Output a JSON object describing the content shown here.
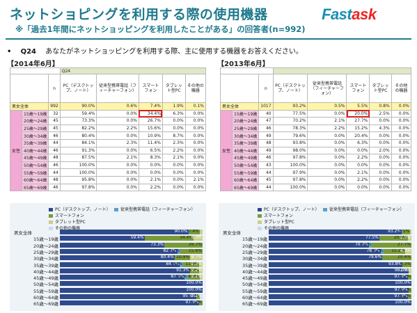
{
  "header": {
    "title": "ネットショピングを利用する際の使用機器",
    "subtitle": "※「過去1年間にネットショッピングを利用したことがある」の回答者(n=992)",
    "logo_main": "Fast",
    "logo_accent": "ask"
  },
  "question": {
    "bullet": "•",
    "num": "Q24",
    "text": "あなたがネットショッピングを利用する際、主に使用する機器をお答えください。"
  },
  "colors": {
    "pc": "#2e4a8c",
    "mobile": "#5aa0c8",
    "smart": "#7a9a3a",
    "tablet": "#c8cf8a",
    "other": "#cfd8ea",
    "teal": "#1f7a8c",
    "pink": "#f2a9d3",
    "total": "#fff5a8"
  },
  "panel2014": {
    "year": "【2014年6月】",
    "qcode": "Q24",
    "headers": [
      "n",
      "PC（デスクトップ、ノート）",
      "従来型携帯電話（フィーチャーフォン）",
      "スマートフォン",
      "タブレット型PC",
      "その他の機器"
    ],
    "total": {
      "label": "男女全体",
      "n": "992",
      "vals": [
        "90.0%",
        "0.6%",
        "7.4%",
        "1.9%",
        "0.1%"
      ]
    },
    "sex": "女性",
    "rows": [
      {
        "age": "15歳～19歳",
        "n": "32",
        "vals": [
          "59.4%",
          "0.0%",
          "34.4%",
          "6.3%",
          "0.0%"
        ]
      },
      {
        "age": "20歳～24歳",
        "n": "45",
        "vals": [
          "73.3%",
          "0.0%",
          "26.7%",
          "0.0%",
          "0.0%"
        ]
      },
      {
        "age": "25歳～29歳",
        "n": "45",
        "vals": [
          "82.2%",
          "2.2%",
          "15.6%",
          "0.0%",
          "0.0%"
        ]
      },
      {
        "age": "30歳～34歳",
        "n": "46",
        "vals": [
          "80.4%",
          "0.0%",
          "10.9%",
          "8.7%",
          "0.0%"
        ]
      },
      {
        "age": "35歳～39歳",
        "n": "44",
        "vals": [
          "84.1%",
          "2.3%",
          "11.4%",
          "2.3%",
          "0.0%"
        ]
      },
      {
        "age": "40歳～44歳",
        "n": "46",
        "vals": [
          "91.3%",
          "0.0%",
          "6.5%",
          "2.2%",
          "0.0%"
        ]
      },
      {
        "age": "45歳～49歳",
        "n": "48",
        "vals": [
          "87.5%",
          "2.1%",
          "8.3%",
          "2.1%",
          "0.0%"
        ]
      },
      {
        "age": "50歳～54歳",
        "n": "46",
        "vals": [
          "100.0%",
          "0.0%",
          "0.0%",
          "0.0%",
          "0.0%"
        ]
      },
      {
        "age": "55歳～59歳",
        "n": "44",
        "vals": [
          "100.0%",
          "0.0%",
          "0.0%",
          "0.0%",
          "0.0%"
        ]
      },
      {
        "age": "60歳～64歳",
        "n": "48",
        "vals": [
          "95.8%",
          "0.0%",
          "2.1%",
          "0.0%",
          "2.1%"
        ]
      },
      {
        "age": "65歳～69歳",
        "n": "46",
        "vals": [
          "97.8%",
          "0.0%",
          "2.2%",
          "0.0%",
          "0.0%"
        ]
      }
    ]
  },
  "panel2013": {
    "year": "【2013年6月】",
    "headers": [
      "n",
      "PC（デスクトップ、ノート）",
      "従来型携帯電話（フィーチャーフォン）",
      "スマートフォン",
      "タブレット型PC",
      "その他の機器"
    ],
    "total": {
      "label": "男女全体",
      "n": "1017",
      "vals": [
        "93.2%",
        "0.5%",
        "5.5%",
        "0.8%",
        "0.0%"
      ]
    },
    "sex": "女性",
    "rows": [
      {
        "age": "15歳～19歳",
        "n": "40",
        "vals": [
          "77.5%",
          "0.0%",
          "20.0%",
          "2.5%",
          "0.0%"
        ]
      },
      {
        "age": "20歳～24歳",
        "n": "47",
        "vals": [
          "70.2%",
          "2.1%",
          "27.7%",
          "0.0%",
          "0.0%"
        ]
      },
      {
        "age": "25歳～29歳",
        "n": "46",
        "vals": [
          "78.3%",
          "2.2%",
          "15.2%",
          "4.3%",
          "0.0%"
        ]
      },
      {
        "age": "30歳～34歳",
        "n": "49",
        "vals": [
          "79.6%",
          "0.0%",
          "20.4%",
          "0.0%",
          "0.0%"
        ]
      },
      {
        "age": "35歳～39歳",
        "n": "48",
        "vals": [
          "93.8%",
          "0.0%",
          "6.3%",
          "0.0%",
          "0.0%"
        ]
      },
      {
        "age": "40歳～44歳",
        "n": "49",
        "vals": [
          "98.0%",
          "0.0%",
          "0.0%",
          "2.0%",
          "0.0%"
        ]
      },
      {
        "age": "45歳～49歳",
        "n": "46",
        "vals": [
          "97.8%",
          "0.0%",
          "2.2%",
          "0.0%",
          "0.0%"
        ]
      },
      {
        "age": "50歳～54歳",
        "n": "43",
        "vals": [
          "100.0%",
          "0.0%",
          "0.0%",
          "0.0%",
          "0.0%"
        ]
      },
      {
        "age": "55歳～59歳",
        "n": "44",
        "vals": [
          "97.9%",
          "0.0%",
          "2.1%",
          "0.0%",
          "0.0%"
        ]
      },
      {
        "age": "60歳～64歳",
        "n": "45",
        "vals": [
          "97.8%",
          "0.0%",
          "2.2%",
          "0.0%",
          "0.0%"
        ]
      },
      {
        "age": "65歳～69歳",
        "n": "44",
        "vals": [
          "100.0%",
          "0.0%",
          "0.0%",
          "0.0%",
          "0.0%"
        ]
      }
    ]
  },
  "chart_data": [
    {
      "type": "bar",
      "stacked": true,
      "orientation": "horizontal",
      "legend": [
        "PC（デスクトップ、ノート）",
        "従来型携帯電話（フィーチャーフォン）",
        "スマートフォン",
        "タブレット型PC",
        "その他の機器"
      ],
      "legend_position": "top",
      "categories": [
        "男女全体",
        "15歳～19歳",
        "20歳～24歳",
        "25歳～29歳",
        "30歳～34歳",
        "35歳～39歳",
        "40歳～44歳",
        "45歳～49歳",
        "50歳～54歳",
        "55歳～59歳",
        "60歳～64歳",
        "65歳～69歳"
      ],
      "series": [
        {
          "name": "PC（デスクトップ、ノート）",
          "values": [
            90.0,
            59.4,
            73.3,
            82.2,
            80.4,
            84.1,
            91.3,
            87.5,
            100.0,
            100.0,
            95.8,
            97.8
          ]
        },
        {
          "name": "従来型携帯電話（フィーチャーフォン）",
          "values": [
            0.6,
            0.0,
            0.0,
            2.2,
            0.0,
            2.3,
            0.0,
            2.1,
            0.0,
            0.0,
            0.0,
            0.0
          ]
        },
        {
          "name": "スマートフォン",
          "values": [
            7.4,
            34.4,
            26.7,
            15.6,
            10.9,
            11.4,
            6.5,
            8.3,
            0.0,
            0.0,
            2.1,
            2.2
          ]
        },
        {
          "name": "タブレット型PC",
          "values": [
            1.9,
            6.3,
            0.0,
            0.0,
            8.7,
            2.3,
            2.2,
            2.1,
            0.0,
            0.0,
            0.0,
            0.0
          ]
        },
        {
          "name": "その他の機器",
          "values": [
            0.1,
            0.0,
            0.0,
            0.0,
            0.0,
            0.0,
            0.0,
            0.0,
            0.0,
            0.0,
            2.1,
            0.0
          ]
        }
      ],
      "xlim": [
        0,
        100
      ]
    },
    {
      "type": "bar",
      "stacked": true,
      "orientation": "horizontal",
      "legend": [
        "PC（デスクトップ、ノート）",
        "従来型携帯電話（フィーチャーフォン）",
        "スマートフォン",
        "タブレット型PC",
        "その他の機器"
      ],
      "legend_position": "top",
      "categories": [
        "男女全体",
        "15歳～19歳",
        "20歳～24歳",
        "25歳～29歳",
        "30歳～34歳",
        "35歳～39歳",
        "40歳～44歳",
        "45歳～49歳",
        "50歳～54歳",
        "55歳～59歳",
        "60歳～64歳",
        "65歳～69歳"
      ],
      "series": [
        {
          "name": "PC（デスクトップ、ノート）",
          "values": [
            93.2,
            77.5,
            70.2,
            78.3,
            79.6,
            93.8,
            98.0,
            97.8,
            100.0,
            97.9,
            97.8,
            100.0
          ]
        },
        {
          "name": "従来型携帯電話（フィーチャーフォン）",
          "values": [
            0.5,
            0.0,
            2.1,
            2.2,
            0.0,
            0.0,
            0.0,
            0.0,
            0.0,
            0.0,
            0.0,
            0.0
          ]
        },
        {
          "name": "スマートフォン",
          "values": [
            5.5,
            20.0,
            27.7,
            15.2,
            20.4,
            6.3,
            0.0,
            2.2,
            0.0,
            2.1,
            2.2,
            0.0
          ]
        },
        {
          "name": "タブレット型PC",
          "values": [
            0.8,
            2.5,
            0.0,
            4.3,
            0.0,
            0.0,
            2.0,
            0.0,
            0.0,
            0.0,
            0.0,
            0.0
          ]
        },
        {
          "name": "その他の機器",
          "values": [
            0.0,
            0.0,
            0.0,
            0.0,
            0.0,
            0.0,
            0.0,
            0.0,
            0.0,
            0.0,
            0.0,
            0.0
          ]
        }
      ],
      "xlim": [
        0,
        100
      ]
    }
  ]
}
